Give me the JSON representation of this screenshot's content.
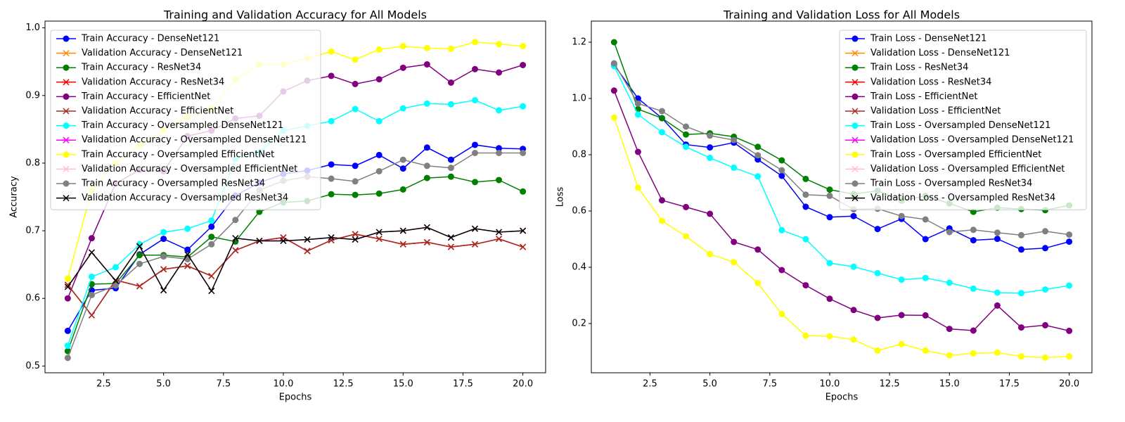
{
  "chart_data": [
    {
      "type": "line",
      "title": "Training and Validation Accuracy for All Models",
      "xlabel": "Epochs",
      "ylabel": "Accuracy",
      "x": [
        1,
        2,
        3,
        4,
        5,
        6,
        7,
        8,
        9,
        10,
        11,
        12,
        13,
        14,
        15,
        16,
        17,
        18,
        19,
        20
      ],
      "xlim": [
        0.05,
        20.95
      ],
      "xticks": [
        2.5,
        {
          "value": 5,
          "label": "5.0"
        },
        7.5,
        {
          "value": 10,
          "label": "10.0"
        },
        12.5,
        {
          "value": 15,
          "label": "15.0"
        },
        17.5,
        {
          "value": 20,
          "label": "20.0"
        }
      ],
      "ylim": [
        0.49,
        1.01
      ],
      "yticks": [
        0.5,
        0.6,
        0.7,
        0.8,
        0.9,
        {
          "value": 1,
          "label": "1.0"
        }
      ],
      "legend": "upper left",
      "series": [
        {
          "name": "Train Accuracy - DenseNet121",
          "color": "#0000ff",
          "marker": "o",
          "values": [
            0.552,
            0.612,
            0.615,
            0.665,
            0.688,
            0.672,
            0.706,
            0.752,
            0.771,
            0.784,
            0.789,
            0.798,
            0.796,
            0.812,
            0.792,
            0.823,
            0.805,
            0.827,
            0.822,
            0.821
          ]
        },
        {
          "name": "Validation Accuracy - DenseNet121",
          "color": "#ff8c00",
          "marker": "x",
          "values": [
            0.62,
            0.575,
            0.627,
            0.618,
            0.643,
            0.648,
            0.633,
            0.671,
            0.685,
            0.69,
            0.67,
            0.686,
            0.695,
            0.688,
            0.68,
            0.683,
            0.676,
            0.68,
            0.688,
            0.676
          ]
        },
        {
          "name": "Train Accuracy - ResNet34",
          "color": "#008000",
          "marker": "o",
          "values": [
            0.522,
            0.621,
            0.622,
            0.664,
            0.664,
            0.661,
            0.691,
            0.684,
            0.728,
            0.742,
            0.744,
            0.754,
            0.753,
            0.755,
            0.761,
            0.778,
            0.78,
            0.772,
            0.775,
            0.758
          ]
        },
        {
          "name": "Validation Accuracy - ResNet34",
          "color": "#ff0000",
          "marker": "x",
          "values": [
            0.62,
            0.575,
            0.627,
            0.618,
            0.643,
            0.648,
            0.633,
            0.671,
            0.685,
            0.69,
            0.67,
            0.686,
            0.695,
            0.688,
            0.68,
            0.683,
            0.676,
            0.68,
            0.688,
            0.676
          ]
        },
        {
          "name": "Train Accuracy - EfficientNet",
          "color": "#800080",
          "marker": "o",
          "values": [
            0.6,
            0.689,
            0.77,
            0.79,
            0.788,
            0.84,
            0.848,
            0.866,
            0.87,
            0.906,
            0.922,
            0.929,
            0.917,
            0.924,
            0.941,
            0.946,
            0.919,
            0.939,
            0.934,
            0.945
          ]
        },
        {
          "name": "Validation Accuracy - EfficientNet",
          "color": "#a52a2a",
          "marker": "x",
          "values": [
            0.62,
            0.575,
            0.627,
            0.618,
            0.643,
            0.648,
            0.633,
            0.671,
            0.685,
            0.69,
            0.67,
            0.686,
            0.695,
            0.688,
            0.68,
            0.683,
            0.676,
            0.68,
            0.688,
            0.676
          ]
        },
        {
          "name": "Train Accuracy - Oversampled DenseNet121",
          "color": "#00ffff",
          "marker": "o",
          "values": [
            0.53,
            0.632,
            0.646,
            0.68,
            0.698,
            0.703,
            0.715,
            0.806,
            0.816,
            0.848,
            0.855,
            0.862,
            0.88,
            0.862,
            0.881,
            0.888,
            0.887,
            0.893,
            0.878,
            0.884
          ]
        },
        {
          "name": "Validation Accuracy - Oversampled DenseNet121",
          "color": "#ff00ff",
          "marker": "x",
          "values": [
            0.617,
            0.668,
            0.626,
            0.677,
            0.612,
            0.665,
            0.611,
            0.689,
            0.685,
            0.685,
            0.687,
            0.69,
            0.687,
            0.698,
            0.7,
            0.705,
            0.69,
            0.703,
            0.698,
            0.7
          ]
        },
        {
          "name": "Train Accuracy - Oversampled EfficientNet",
          "color": "#ffff00",
          "marker": "o",
          "values": [
            0.629,
            0.76,
            0.8,
            0.826,
            0.848,
            0.869,
            0.88,
            0.924,
            0.946,
            0.946,
            0.955,
            0.965,
            0.953,
            0.968,
            0.973,
            0.97,
            0.969,
            0.979,
            0.976,
            0.973
          ]
        },
        {
          "name": "Validation Accuracy - Oversampled EfficientNet",
          "color": "#ffc0cb",
          "marker": "x",
          "values": [
            0.617,
            0.668,
            0.626,
            0.677,
            0.612,
            0.665,
            0.611,
            0.689,
            0.685,
            0.685,
            0.687,
            0.69,
            0.687,
            0.698,
            0.7,
            0.705,
            0.69,
            0.703,
            0.698,
            0.7
          ]
        },
        {
          "name": "Train Accuracy - Oversampled ResNet34",
          "color": "#808080",
          "marker": "o",
          "values": [
            0.512,
            0.605,
            0.619,
            0.651,
            0.662,
            0.658,
            0.68,
            0.716,
            0.76,
            0.774,
            0.78,
            0.777,
            0.773,
            0.788,
            0.805,
            0.796,
            0.793,
            0.815,
            0.815,
            0.815
          ]
        },
        {
          "name": "Validation Accuracy - Oversampled ResNet34",
          "color": "#000000",
          "marker": "x",
          "values": [
            0.617,
            0.668,
            0.626,
            0.677,
            0.612,
            0.665,
            0.611,
            0.689,
            0.685,
            0.685,
            0.687,
            0.69,
            0.687,
            0.698,
            0.7,
            0.705,
            0.69,
            0.703,
            0.698,
            0.7
          ]
        }
      ]
    },
    {
      "type": "line",
      "title": "Training and Validation Loss for All Models",
      "xlabel": "Epochs",
      "ylabel": "Loss",
      "x": [
        1,
        2,
        3,
        4,
        5,
        6,
        7,
        8,
        9,
        10,
        11,
        12,
        13,
        14,
        15,
        16,
        17,
        18,
        19,
        20
      ],
      "xlim": [
        0.05,
        20.95
      ],
      "xticks": [
        2.5,
        {
          "value": 5,
          "label": "5.0"
        },
        7.5,
        {
          "value": 10,
          "label": "10.0"
        },
        12.5,
        {
          "value": 15,
          "label": "15.0"
        },
        17.5,
        {
          "value": 20,
          "label": "20.0"
        }
      ],
      "ylim": [
        0.025,
        1.275
      ],
      "yticks": [
        0.2,
        0.4,
        0.6,
        0.8,
        {
          "value": 1,
          "label": "1.0"
        },
        1.2
      ],
      "legend": "upper right",
      "series": [
        {
          "name": "Train Loss - DenseNet121",
          "color": "#0000ff",
          "marker": "o",
          "values": [
            1.12,
            1.0,
            0.93,
            0.836,
            0.826,
            0.843,
            0.783,
            0.725,
            0.615,
            0.578,
            0.582,
            0.536,
            0.572,
            0.5,
            0.538,
            0.496,
            0.501,
            0.463,
            0.468,
            0.491
          ]
        },
        {
          "name": "Validation Loss - DenseNet121",
          "color": "#ff8c00",
          "marker": "x",
          "values": [
            null,
            null,
            null,
            null,
            null,
            null,
            null,
            null,
            null,
            null,
            null,
            null,
            null,
            null,
            null,
            null,
            null,
            null,
            null,
            null
          ]
        },
        {
          "name": "Train Loss - ResNet34",
          "color": "#008000",
          "marker": "o",
          "values": [
            1.2,
            0.962,
            0.93,
            0.872,
            0.876,
            0.864,
            0.828,
            0.78,
            0.714,
            0.676,
            0.66,
            0.672,
            0.637,
            0.654,
            0.627,
            0.597,
            0.612,
            0.607,
            0.603,
            0.62
          ]
        },
        {
          "name": "Validation Loss - ResNet34",
          "color": "#ff0000",
          "marker": "x",
          "values": [
            null,
            null,
            null,
            null,
            null,
            null,
            null,
            null,
            null,
            null,
            null,
            null,
            null,
            null,
            null,
            null,
            null,
            null,
            null,
            null
          ]
        },
        {
          "name": "Train Loss - EfficientNet",
          "color": "#800080",
          "marker": "o",
          "values": [
            1.028,
            0.81,
            0.638,
            0.614,
            0.59,
            0.49,
            0.463,
            0.39,
            0.336,
            0.288,
            0.248,
            0.22,
            0.23,
            0.229,
            0.181,
            0.175,
            0.264,
            0.186,
            0.194,
            0.174
          ]
        },
        {
          "name": "Validation Loss - EfficientNet",
          "color": "#a52a2a",
          "marker": "x",
          "values": [
            null,
            null,
            null,
            null,
            null,
            null,
            null,
            null,
            null,
            null,
            null,
            null,
            null,
            null,
            null,
            null,
            null,
            null,
            null,
            null
          ]
        },
        {
          "name": "Train Loss - Oversampled DenseNet121",
          "color": "#00ffff",
          "marker": "o",
          "values": [
            1.115,
            0.943,
            0.88,
            0.828,
            0.789,
            0.754,
            0.723,
            0.532,
            0.5,
            0.415,
            0.402,
            0.379,
            0.356,
            0.362,
            0.345,
            0.324,
            0.31,
            0.308,
            0.321,
            0.335
          ]
        },
        {
          "name": "Validation Loss - Oversampled DenseNet121",
          "color": "#ff00ff",
          "marker": "x",
          "values": [
            null,
            null,
            null,
            null,
            null,
            null,
            null,
            null,
            null,
            null,
            null,
            null,
            null,
            null,
            null,
            null,
            null,
            null,
            null,
            null
          ]
        },
        {
          "name": "Train Loss - Oversampled EfficientNet",
          "color": "#ffff00",
          "marker": "o",
          "values": [
            0.932,
            0.683,
            0.565,
            0.51,
            0.447,
            0.418,
            0.344,
            0.234,
            0.157,
            0.155,
            0.143,
            0.104,
            0.127,
            0.104,
            0.087,
            0.094,
            0.097,
            0.083,
            0.079,
            0.083
          ]
        },
        {
          "name": "Validation Loss - Oversampled EfficientNet",
          "color": "#ffc0cb",
          "marker": "x",
          "values": [
            null,
            null,
            null,
            null,
            null,
            null,
            null,
            null,
            null,
            null,
            null,
            null,
            null,
            null,
            null,
            null,
            null,
            null,
            null,
            null
          ]
        },
        {
          "name": "Train Loss - Oversampled ResNet34",
          "color": "#808080",
          "marker": "o",
          "values": [
            1.125,
            0.982,
            0.955,
            0.9,
            0.868,
            0.852,
            0.798,
            0.745,
            0.658,
            0.654,
            0.606,
            0.608,
            0.582,
            0.57,
            0.525,
            0.533,
            0.523,
            0.514,
            0.528,
            0.516
          ]
        },
        {
          "name": "Validation Loss - Oversampled ResNet34",
          "color": "#000000",
          "marker": "x",
          "values": [
            null,
            null,
            null,
            null,
            null,
            null,
            null,
            null,
            null,
            null,
            null,
            null,
            null,
            null,
            null,
            null,
            null,
            null,
            null,
            null
          ]
        }
      ]
    }
  ]
}
